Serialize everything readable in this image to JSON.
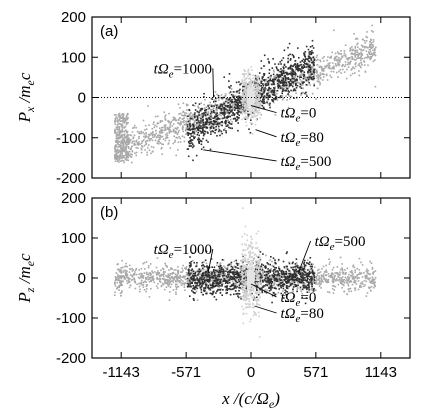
{
  "chart_data": [
    {
      "type": "scatter",
      "panel": "(a)",
      "xlim": [
        -1400,
        1400
      ],
      "ylim": [
        -200,
        200
      ],
      "yticks": [
        -200,
        -100,
        0,
        100,
        200
      ],
      "xticks": [
        -1143,
        -571,
        0,
        571,
        1143
      ],
      "show_xticklabels": false,
      "ylabel": "P_x/m_ec",
      "zero_line": "dotted",
      "series": [
        {
          "name": "tΩe=1000",
          "color": "#a8a8a8",
          "x_range": [
            -1200,
            1100
          ],
          "shape": "ramp",
          "slope": 0.11,
          "spread": 22,
          "tail": "tail_a"
        },
        {
          "name": "tΩe=500",
          "color": "#2e2e2e",
          "x_range": [
            -560,
            560
          ],
          "shape": "ramp",
          "slope": 0.16,
          "spread": 28,
          "tail": "none"
        },
        {
          "name": "tΩe=80",
          "color": "#cfcfcf",
          "x_range": [
            -80,
            80
          ],
          "shape": "blob",
          "slope": 0,
          "spread": 22,
          "tail": "none"
        },
        {
          "name": "tΩe=0",
          "color": "#e4e4e4",
          "x_range": [
            -30,
            30
          ],
          "shape": "blob",
          "slope": 0,
          "spread": 8,
          "tail": "none"
        }
      ],
      "annotations": [
        {
          "sym": "tΩe",
          "val": "=1000",
          "x": -600,
          "y": 60,
          "to": [
            -330,
            0
          ]
        },
        {
          "sym": "tΩe",
          "val": "=0",
          "x": 260,
          "y": -50,
          "to": [
            0,
            -20
          ]
        },
        {
          "sym": "tΩe",
          "val": "=80",
          "x": 260,
          "y": -110,
          "to": [
            40,
            -80
          ]
        },
        {
          "sym": "tΩe",
          "val": "=500",
          "x": 260,
          "y": -170,
          "to": [
            -420,
            -130
          ]
        }
      ]
    },
    {
      "type": "scatter",
      "panel": "(b)",
      "xlim": [
        -1400,
        1400
      ],
      "ylim": [
        -200,
        200
      ],
      "yticks": [
        -200,
        -100,
        0,
        100,
        200
      ],
      "xticks": [
        -1143,
        -571,
        0,
        571,
        1143
      ],
      "xticklabels": [
        "-1143",
        "-571",
        "0",
        "571",
        "1143"
      ],
      "ylabel": "P_z/m_ec",
      "xlabel": "x/(c/Ω_e)",
      "zero_line": "none",
      "series": [
        {
          "name": "tΩe=1000",
          "color": "#a8a8a8",
          "x_range": [
            -1200,
            1100
          ],
          "shape": "band",
          "slope": 0,
          "spread": 18,
          "tail": "none"
        },
        {
          "name": "tΩe=500",
          "color": "#2e2e2e",
          "x_range": [
            -560,
            560
          ],
          "shape": "band",
          "slope": 0,
          "spread": 22,
          "tail": "none"
        },
        {
          "name": "tΩe=80",
          "color": "#cfcfcf",
          "x_range": [
            -80,
            80
          ],
          "shape": "blob",
          "slope": 0,
          "spread": 35,
          "tail": "none"
        },
        {
          "name": "tΩe=0",
          "color": "#e4e4e4",
          "x_range": [
            -30,
            30
          ],
          "shape": "blob",
          "slope": 0,
          "spread": 8,
          "tail": "none"
        }
      ],
      "annotations": [
        {
          "sym": "tΩe",
          "val": "=1000",
          "x": -600,
          "y": 60,
          "to": [
            -380,
            10
          ]
        },
        {
          "sym": "tΩe",
          "val": "=500",
          "x": 560,
          "y": 80,
          "to": [
            420,
            15
          ]
        },
        {
          "sym": "tΩe",
          "val": "=0",
          "x": 260,
          "y": -60,
          "to": [
            0,
            -15
          ]
        },
        {
          "sym": "tΩe",
          "val": "=80",
          "x": 260,
          "y": -100,
          "to": [
            30,
            -70
          ]
        }
      ]
    }
  ]
}
